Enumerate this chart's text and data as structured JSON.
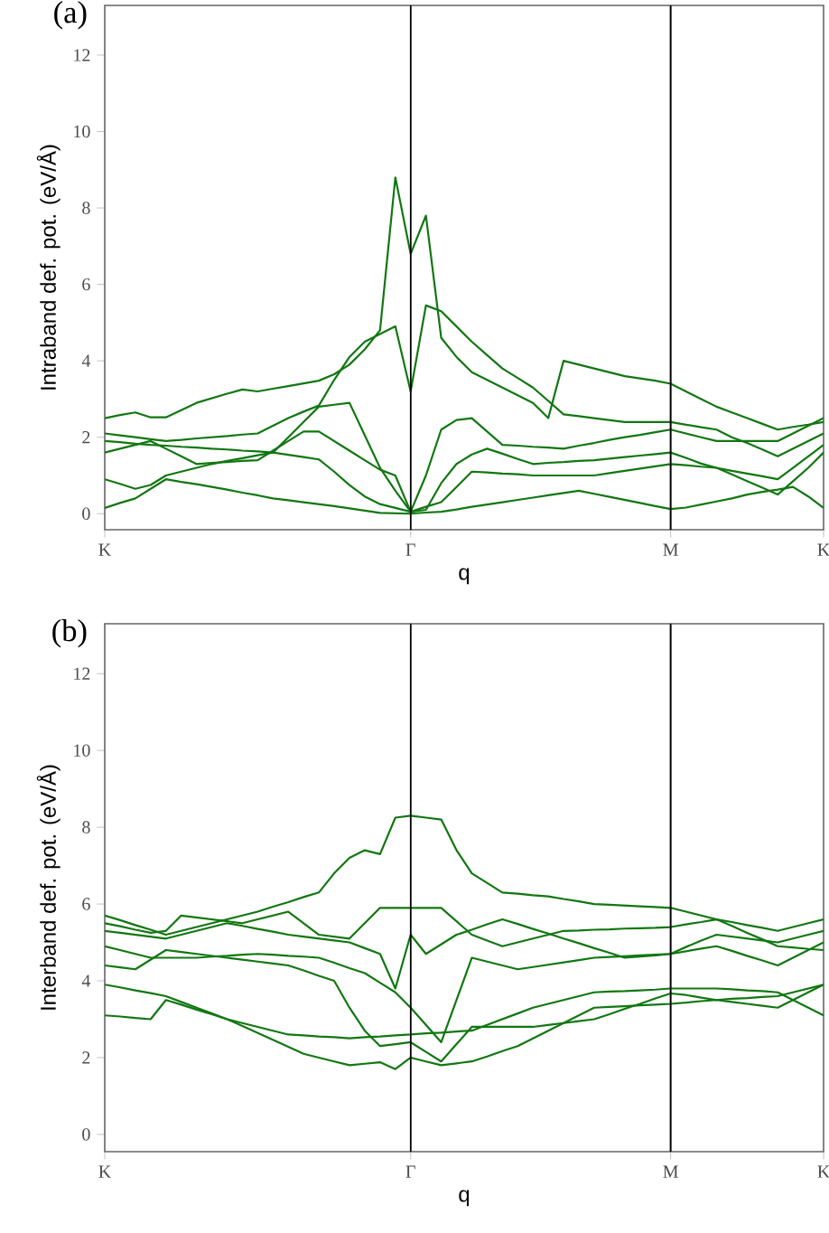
{
  "chart_data": [
    {
      "type": "line",
      "title": "(a)",
      "xlabel": "q",
      "ylabel": "Intraband def. pot. (eV/Å)",
      "ylim": [
        -0.42,
        13.3
      ],
      "categories": [
        "K",
        null,
        null,
        null,
        null,
        null,
        null,
        null,
        null,
        null,
        null,
        null,
        null,
        null,
        null,
        null,
        null,
        null,
        null,
        null,
        "Γ",
        null,
        null,
        null,
        null,
        null,
        null,
        null,
        null,
        null,
        null,
        null,
        null,
        null,
        null,
        null,
        null,
        "M",
        null,
        null,
        null,
        null,
        null,
        null,
        null,
        null,
        null,
        "K"
      ],
      "yticks": [
        0,
        2,
        4,
        6,
        8,
        10,
        12
      ],
      "ref_lines": [
        {
          "axis": "x",
          "value": "Γ",
          "color": "#000000"
        },
        {
          "axis": "x",
          "value": "M",
          "color": "#000000"
        }
      ],
      "series": [
        {
          "color": "#117711",
          "values": [
            2.5,
            2.58,
            2.65,
            2.52,
            2.52,
            2.71,
            2.9,
            3.02,
            3.14,
            3.25,
            3.2,
            3.27,
            3.34,
            3.41,
            3.48,
            3.65,
            3.9,
            4.3,
            4.8,
            8.8,
            6.8,
            7.8,
            4.6,
            4.1,
            3.7,
            3.5,
            3.3,
            3.1,
            2.9,
            2.5,
            4.0,
            3.9,
            3.8,
            3.7,
            3.6,
            3.54,
            3.48,
            3.4,
            3.2,
            3.0,
            2.8,
            2.65,
            2.5,
            2.35,
            2.2,
            2.27,
            2.33,
            2.4
          ]
        },
        {
          "color": "#117711",
          "values": [
            2.1,
            2.05,
            2.0,
            1.95,
            1.9,
            1.93,
            1.97,
            2.0,
            2.03,
            2.07,
            2.1,
            2.3,
            2.5,
            2.67,
            2.83,
            3.5,
            4.1,
            4.5,
            4.7,
            4.9,
            3.2,
            5.45,
            5.3,
            4.9,
            4.5,
            4.15,
            3.8,
            3.55,
            3.3,
            2.95,
            2.6,
            2.55,
            2.5,
            2.45,
            2.4,
            2.4,
            2.4,
            2.4,
            2.33,
            2.26,
            2.2,
            2.0,
            1.85,
            1.68,
            1.5,
            1.7,
            1.9,
            2.1
          ]
        },
        {
          "color": "#117711",
          "values": [
            1.9,
            1.87,
            1.83,
            1.8,
            1.78,
            1.75,
            1.73,
            1.7,
            1.68,
            1.65,
            1.63,
            1.6,
            2.0,
            2.4,
            2.8,
            2.85,
            2.9,
            2.05,
            1.2,
            0.6,
            0.05,
            1.0,
            2.2,
            2.45,
            2.5,
            2.15,
            1.8,
            1.78,
            1.75,
            1.73,
            1.7,
            1.78,
            1.85,
            1.93,
            2.0,
            2.06,
            2.13,
            2.2,
            2.1,
            2.0,
            1.9,
            1.9,
            1.9,
            1.9,
            1.9,
            2.1,
            2.3,
            2.5
          ]
        },
        {
          "color": "#117711",
          "values": [
            1.6,
            1.7,
            1.8,
            1.9,
            1.7,
            1.5,
            1.3,
            1.33,
            1.35,
            1.38,
            1.4,
            1.65,
            1.9,
            2.15,
            2.15,
            1.9,
            1.65,
            1.4,
            1.15,
            1.0,
            0.05,
            0.1,
            0.8,
            1.3,
            1.55,
            1.7,
            1.57,
            1.43,
            1.3,
            1.33,
            1.35,
            1.38,
            1.4,
            1.44,
            1.48,
            1.52,
            1.56,
            1.6,
            1.46,
            1.31,
            1.2,
            1.12,
            1.05,
            0.98,
            0.9,
            1.2,
            1.5,
            1.8
          ]
        },
        {
          "color": "#117711",
          "values": [
            0.9,
            0.78,
            0.65,
            0.75,
            1.0,
            1.1,
            1.2,
            1.3,
            1.38,
            1.45,
            1.53,
            1.6,
            1.54,
            1.48,
            1.42,
            1.1,
            0.75,
            0.45,
            0.25,
            0.15,
            0.05,
            0.18,
            0.3,
            0.7,
            1.1,
            1.08,
            1.05,
            1.03,
            1.0,
            1.0,
            1.0,
            1.0,
            1.0,
            1.06,
            1.12,
            1.18,
            1.24,
            1.3,
            1.27,
            1.23,
            1.2,
            1.03,
            0.85,
            0.68,
            0.5,
            0.85,
            1.2,
            1.6
          ]
        },
        {
          "color": "#117711",
          "values": [
            0.15,
            0.28,
            0.4,
            0.65,
            0.9,
            0.83,
            0.77,
            0.7,
            0.63,
            0.55,
            0.48,
            0.4,
            0.35,
            0.3,
            0.25,
            0.2,
            0.14,
            0.08,
            0.02,
            0.01,
            0.0,
            0.03,
            0.05,
            0.11,
            0.18,
            0.24,
            0.3,
            0.36,
            0.42,
            0.48,
            0.54,
            0.6,
            0.52,
            0.44,
            0.36,
            0.28,
            0.2,
            0.12,
            0.16,
            0.24,
            0.32,
            0.4,
            0.5,
            0.57,
            0.63,
            0.7,
            0.45,
            0.15
          ]
        }
      ]
    },
    {
      "type": "line",
      "title": "(b)",
      "xlabel": "q",
      "ylabel": "Interband def. pot. (eV/Å)",
      "ylim": [
        -0.45,
        13.3
      ],
      "categories": [
        "K",
        null,
        null,
        null,
        null,
        null,
        null,
        null,
        null,
        null,
        null,
        null,
        null,
        null,
        null,
        null,
        null,
        null,
        null,
        null,
        "Γ",
        null,
        null,
        null,
        null,
        null,
        null,
        null,
        null,
        null,
        null,
        null,
        null,
        null,
        null,
        null,
        null,
        "M",
        null,
        null,
        null,
        null,
        null,
        null,
        null,
        null,
        null,
        "K"
      ],
      "yticks": [
        0,
        2,
        4,
        6,
        8,
        10,
        12
      ],
      "ref_lines": [
        {
          "axis": "x",
          "value": "Γ",
          "color": "#000000"
        },
        {
          "axis": "x",
          "value": "M",
          "color": "#000000"
        }
      ],
      "series": [
        {
          "color": "#117711",
          "values": [
            5.7,
            5.58,
            5.45,
            5.33,
            5.2,
            5.3,
            5.4,
            5.5,
            5.6,
            5.7,
            5.8,
            5.93,
            6.05,
            6.18,
            6.3,
            6.8,
            7.2,
            7.4,
            7.3,
            8.25,
            8.3,
            8.25,
            8.2,
            7.4,
            6.8,
            6.55,
            6.3,
            6.27,
            6.23,
            6.2,
            6.13,
            6.07,
            6.0,
            5.98,
            5.96,
            5.94,
            5.92,
            5.9,
            5.8,
            5.7,
            5.6,
            5.43,
            5.25,
            5.08,
            4.9,
            4.87,
            4.83,
            4.8
          ]
        },
        {
          "color": "#117711",
          "values": [
            5.5,
            5.42,
            5.33,
            5.25,
            5.3,
            5.7,
            5.65,
            5.6,
            5.55,
            5.5,
            5.6,
            5.7,
            5.8,
            5.5,
            5.2,
            5.15,
            5.1,
            5.5,
            5.9,
            5.9,
            5.9,
            5.9,
            5.9,
            5.55,
            5.2,
            5.05,
            4.9,
            5.0,
            5.1,
            5.2,
            5.3,
            5.31,
            5.33,
            5.34,
            5.36,
            5.37,
            5.38,
            5.4,
            5.47,
            5.53,
            5.6,
            5.53,
            5.45,
            5.38,
            5.3,
            5.4,
            5.5,
            5.6
          ]
        },
        {
          "color": "#117711",
          "values": [
            5.3,
            5.25,
            5.2,
            5.15,
            5.1,
            5.2,
            5.3,
            5.4,
            5.5,
            5.43,
            5.35,
            5.28,
            5.2,
            5.15,
            5.1,
            5.05,
            5.0,
            4.85,
            4.7,
            3.8,
            5.2,
            4.7,
            4.95,
            5.2,
            5.33,
            5.47,
            5.6,
            5.48,
            5.35,
            5.23,
            5.1,
            4.98,
            4.85,
            4.73,
            4.6,
            4.63,
            4.66,
            4.7,
            4.88,
            5.05,
            5.2,
            5.15,
            5.1,
            5.05,
            5.0,
            5.1,
            5.2,
            5.3
          ]
        },
        {
          "color": "#117711",
          "values": [
            4.9,
            4.8,
            4.7,
            4.6,
            4.6,
            4.6,
            4.6,
            4.63,
            4.65,
            4.68,
            4.7,
            4.68,
            4.65,
            4.63,
            4.6,
            4.47,
            4.33,
            4.2,
            3.95,
            3.7,
            3.3,
            2.85,
            2.4,
            3.5,
            4.6,
            4.5,
            4.4,
            4.3,
            4.36,
            4.42,
            4.48,
            4.54,
            4.6,
            4.62,
            4.64,
            4.66,
            4.68,
            4.7,
            4.77,
            4.84,
            4.9,
            4.78,
            4.65,
            4.53,
            4.4,
            4.6,
            4.8,
            5.0
          ]
        },
        {
          "color": "#117711",
          "values": [
            4.4,
            4.35,
            4.3,
            4.55,
            4.8,
            4.75,
            4.7,
            4.65,
            4.6,
            4.55,
            4.5,
            4.45,
            4.4,
            4.27,
            4.13,
            4.0,
            3.3,
            2.7,
            2.3,
            2.35,
            2.4,
            2.15,
            1.9,
            2.35,
            2.8,
            2.8,
            2.8,
            2.8,
            2.8,
            2.85,
            2.9,
            2.95,
            3.0,
            3.13,
            3.27,
            3.4,
            3.54,
            3.67,
            3.63,
            3.56,
            3.5,
            3.53,
            3.55,
            3.58,
            3.6,
            3.7,
            3.8,
            3.9
          ]
        },
        {
          "color": "#117711",
          "values": [
            3.9,
            3.83,
            3.75,
            3.68,
            3.6,
            3.45,
            3.3,
            3.15,
            3.0,
            2.9,
            2.8,
            2.7,
            2.6,
            2.58,
            2.55,
            2.53,
            2.5,
            2.53,
            2.55,
            2.58,
            2.6,
            2.63,
            2.65,
            2.68,
            2.7,
            2.85,
            3.0,
            3.15,
            3.3,
            3.4,
            3.5,
            3.6,
            3.7,
            3.72,
            3.73,
            3.75,
            3.77,
            3.8,
            3.8,
            3.8,
            3.8,
            3.78,
            3.75,
            3.73,
            3.7,
            3.5,
            3.3,
            3.1
          ]
        },
        {
          "color": "#117711",
          "values": [
            3.1,
            3.07,
            3.03,
            3.0,
            3.5,
            3.38,
            3.25,
            3.13,
            3.0,
            2.82,
            2.64,
            2.46,
            2.28,
            2.1,
            2.0,
            1.9,
            1.8,
            1.84,
            1.88,
            1.7,
            2.0,
            1.9,
            1.8,
            1.85,
            1.9,
            2.03,
            2.17,
            2.3,
            2.5,
            2.7,
            2.9,
            3.1,
            3.3,
            3.32,
            3.34,
            3.36,
            3.38,
            3.4,
            3.43,
            3.47,
            3.5,
            3.45,
            3.4,
            3.35,
            3.3,
            3.5,
            3.7,
            3.9
          ]
        }
      ]
    }
  ]
}
